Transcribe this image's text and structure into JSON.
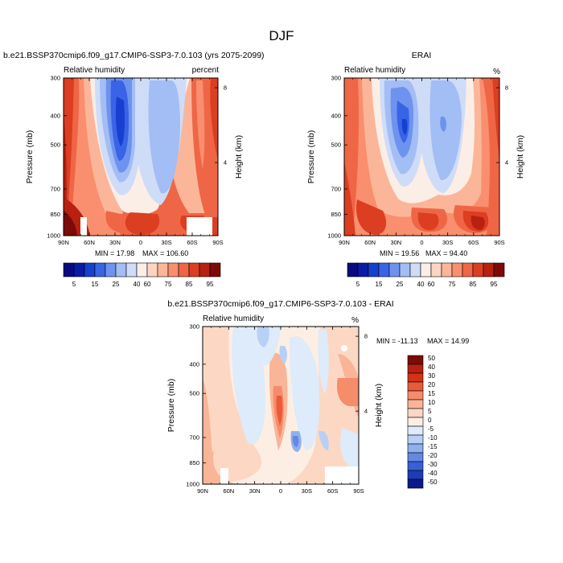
{
  "page_title": "DJF",
  "chart_data": [
    {
      "type": "heatmap",
      "id": "model",
      "header": "b.e21.BSSP370cmip6.f09_g17.CMIP6-SSP3-7.0.103 (yrs 2075-2099)",
      "subtitle_left": "Relative humidity",
      "subtitle_right": "percent",
      "xlabel": "",
      "ylabel": "Pressure (mb)",
      "ylabel_right": "Height (km)",
      "x_ticks": [
        "90N",
        "60N",
        "30N",
        "0",
        "30S",
        "60S",
        "90S"
      ],
      "y_ticks": [
        "300",
        "400",
        "500",
        "700",
        "850",
        "1000"
      ],
      "height_ticks": [
        "8",
        "4"
      ],
      "min": 17.98,
      "max": 106.6,
      "min_label": "MIN = 17.98",
      "max_label": "MAX = 106.60",
      "colorbar_levels": [
        "5",
        "15",
        "25",
        "40",
        "60",
        "75",
        "85",
        "95"
      ]
    },
    {
      "type": "heatmap",
      "id": "obs",
      "header": "ERAI",
      "subtitle_left": "Relative humidity",
      "subtitle_right": "%",
      "xlabel": "",
      "ylabel": "Pressure (mb)",
      "ylabel_right": "Height (km)",
      "x_ticks": [
        "90N",
        "60N",
        "30N",
        "0",
        "30S",
        "60S",
        "90S"
      ],
      "y_ticks": [
        "300",
        "400",
        "500",
        "700",
        "850",
        "1000"
      ],
      "height_ticks": [
        "8",
        "4"
      ],
      "min": 19.56,
      "max": 94.4,
      "min_label": "MIN = 19.56",
      "max_label": "MAX = 94.40",
      "colorbar_levels": [
        "5",
        "15",
        "25",
        "40",
        "60",
        "75",
        "85",
        "95"
      ]
    },
    {
      "type": "heatmap",
      "id": "diff",
      "header": "b.e21.BSSP370cmip6.f09_g17.CMIP6-SSP3-7.0.103 - ERAI",
      "subtitle_left": "Relative humidity",
      "subtitle_right": "%",
      "xlabel": "",
      "ylabel": "Pressure (mb)",
      "ylabel_right": "Height (km)",
      "x_ticks": [
        "90N",
        "60N",
        "30N",
        "0",
        "30S",
        "60S",
        "90S"
      ],
      "y_ticks": [
        "300",
        "400",
        "500",
        "700",
        "850",
        "1000"
      ],
      "height_ticks": [
        "8",
        "4"
      ],
      "min": -11.13,
      "max": 14.99,
      "min_label": "MIN = -11.13",
      "max_label": "MAX = 14.99",
      "colorbar_levels": [
        "50",
        "40",
        "30",
        "20",
        "15",
        "10",
        "5",
        "0",
        "-5",
        "-10",
        "-15",
        "-20",
        "-30",
        "-40",
        "-50"
      ]
    }
  ],
  "colors": {
    "rh_scale": [
      "#0a0a80",
      "#0b1aa8",
      "#1540d0",
      "#3a64e6",
      "#6e93ee",
      "#a3bdf5",
      "#cfdcf8",
      "#fbeee6",
      "#fcd5c2",
      "#fbb69a",
      "#f98f6e",
      "#ef6646",
      "#dc3e22",
      "#b82110",
      "#7d0a06"
    ],
    "diff_scale": [
      "#7d0a06",
      "#b82110",
      "#d5301a",
      "#eb5a3a",
      "#f58c6a",
      "#f9b597",
      "#fcd8c4",
      "#fdeee4",
      "#ddebfb",
      "#b8d0f6",
      "#8fb0ef",
      "#6489e4",
      "#3a5fd6",
      "#1c3cb8",
      "#0b1a8a"
    ]
  }
}
